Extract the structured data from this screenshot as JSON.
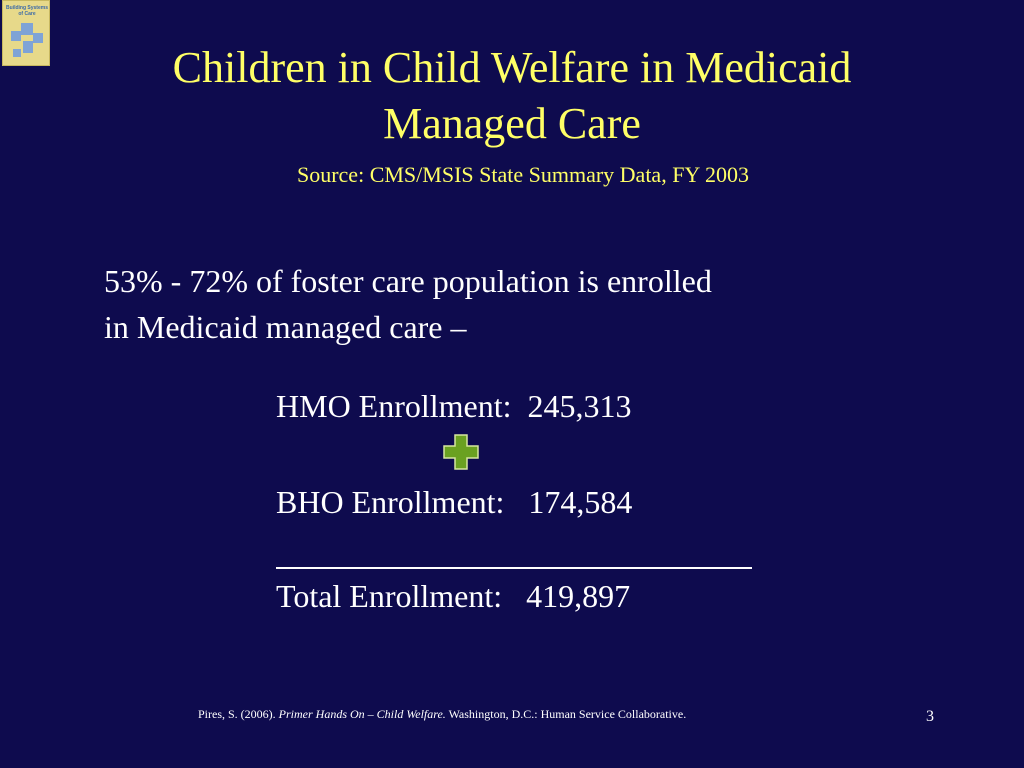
{
  "logo": {
    "text": "Building Systems of Care"
  },
  "title": {
    "line1": "Children in Child Welfare in Medicaid",
    "line2": "Managed Care",
    "source": "Source:  CMS/MSIS State Summary Data, FY 2003"
  },
  "body": {
    "intro_line1": "53% - 72% of foster care population is enrolled",
    "intro_line2": "in Medicaid managed care –",
    "hmo": "HMO Enrollment:  245,313",
    "bho": "BHO Enrollment:   174,584",
    "total": "Total Enrollment:   419,897"
  },
  "footer": {
    "citation_prefix": "Pires, S. (2006). ",
    "citation_title": "Primer Hands On – Child Welfare.",
    "citation_suffix": " Washington, D.C.: Human Service Collaborative.",
    "page_number": "3"
  },
  "colors": {
    "background": "#0e0b4e",
    "title": "#ffff66",
    "text": "#ffffff",
    "plus_icon": "#6aa121"
  },
  "icons": {
    "plus": "plus-icon"
  }
}
